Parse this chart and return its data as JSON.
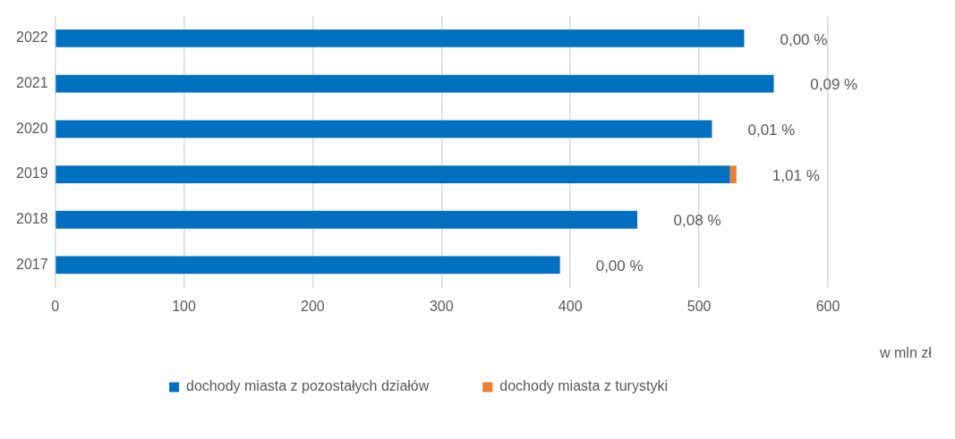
{
  "chart_data": {
    "type": "bar",
    "orientation": "horizontal",
    "stacked": true,
    "xlabel": "w mln zł",
    "categories": [
      "2022",
      "2021",
      "2020",
      "2019",
      "2018",
      "2017"
    ],
    "series": [
      {
        "name": "dochody miasta z pozostałych działów",
        "color": "#0070c0",
        "values": [
          535,
          558,
          510,
          524,
          452,
          392
        ]
      },
      {
        "name": "dochody miasta z turystyki",
        "color": "#ed7d31",
        "values": [
          0,
          null,
          0,
          5,
          null,
          0
        ]
      }
    ],
    "annotations": [
      {
        "text": "0,00 %",
        "x": 535,
        "y": "2022"
      },
      {
        "text": "0,09 %",
        "x": 558.5,
        "y": "2021"
      },
      {
        "text": "0,01 %",
        "x": 510,
        "y": "2020"
      },
      {
        "text": "1,01 %",
        "x": 529,
        "y": "2019"
      },
      {
        "text": "0,08 %",
        "x": 452.4,
        "y": "2018"
      },
      {
        "text": "0,00 %",
        "x": 392,
        "y": "2017"
      }
    ],
    "xlim": [
      0,
      600
    ],
    "xticks": [
      0,
      100,
      200,
      300,
      400,
      500,
      600
    ],
    "grid": "x",
    "legend": "bottom"
  }
}
